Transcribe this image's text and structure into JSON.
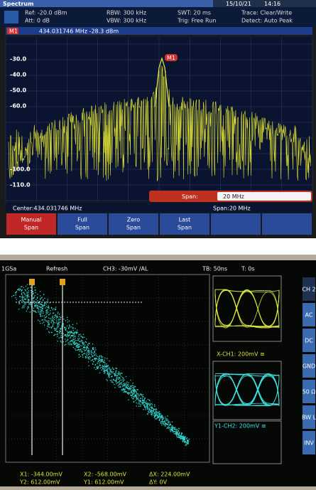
{
  "spectrum": {
    "title": "Spectrum",
    "date": "15/10/21",
    "time": "14:16",
    "settings": [
      [
        "Ref: -20.0 dBm",
        "RBW: 300 kHz",
        "SWT: 20 ms",
        "Trace: Clear/Write"
      ],
      [
        "Att: 0 dB",
        "VBW: 300 kHz",
        "Trig: Free Run",
        "Detect: Auto Peak"
      ]
    ],
    "marker": {
      "label": "M1",
      "readout": "434.031746  MHz  -28.3  dBm"
    },
    "y_labels": [
      "-30.0",
      "-40.0",
      "-50.0",
      "-60.0",
      "-100.0",
      "-110.0"
    ],
    "span_field": {
      "label": "Span:",
      "value": "20 MHz"
    },
    "center": "Center:434.031746 MHz",
    "span": "Span:20 MHz",
    "softkeys": [
      [
        "Manual",
        "Span"
      ],
      [
        "Full",
        "Span"
      ],
      [
        "Zero",
        "Span"
      ],
      [
        "Last",
        "Span"
      ]
    ]
  },
  "scope": {
    "sample_rate": "1GSa",
    "mode": "Refresh",
    "trigger": "CH3: -30mV ∕AL",
    "timebase": "TB: 50ns",
    "time_offset": "T: 0s",
    "eye_labels": [
      "X-CH1: 200mV ≅",
      "Y1-CH2: 200mV ≅"
    ],
    "side_menu": [
      "CH 2",
      "AC",
      "DC",
      "GND",
      "50 Ω",
      "BW L",
      "INV"
    ],
    "readouts": [
      [
        "X1: -344.00mV",
        "X2: -568.00mV",
        "ΔX: 224.00mV"
      ],
      [
        "Y2: 612.00mV",
        "Y1: 612.00mV",
        "ΔY: 0V"
      ]
    ]
  }
}
